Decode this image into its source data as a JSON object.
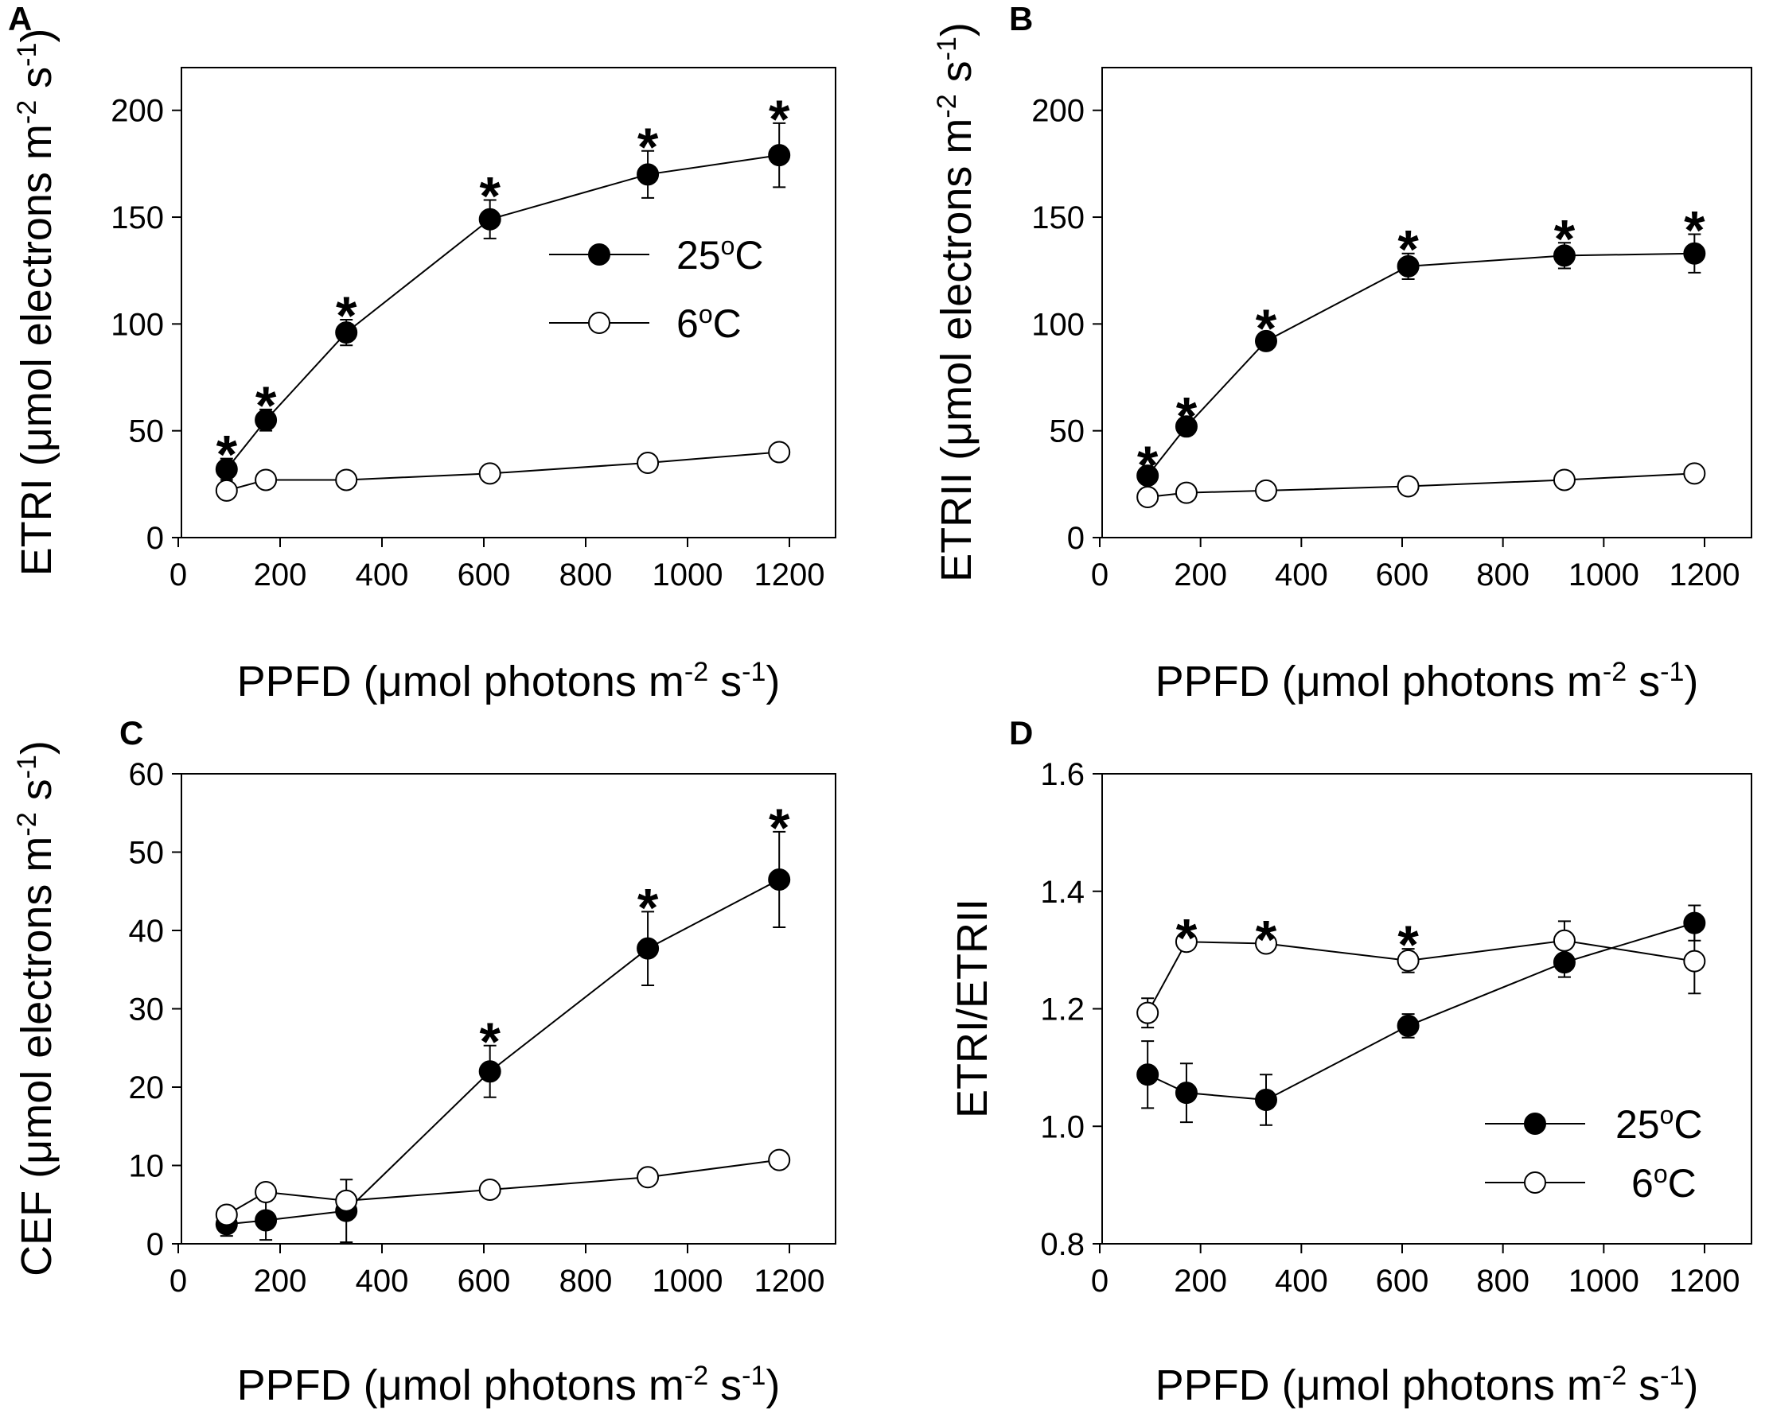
{
  "chart_data": [
    {
      "panel": "A",
      "type": "line",
      "xlabel": "PPFD (μmol photons m",
      "xlabel_sup1": "-2",
      "xlabel_mid": " s",
      "xlabel_sup2": "-1",
      "xlabel_end": ")",
      "ylabel": "ETRI (μmol electrons m",
      "ylabel_sup1": "-2",
      "ylabel_mid": " s",
      "ylabel_sup2": "-1",
      "ylabel_end": ")",
      "xlim": [
        0,
        1300
      ],
      "ylim": [
        0,
        220
      ],
      "xticks": [
        0,
        200,
        400,
        600,
        800,
        1000,
        1200
      ],
      "yticks": [
        0,
        50,
        100,
        150,
        200
      ],
      "x": [
        95,
        172,
        330,
        612,
        922,
        1180
      ],
      "series": [
        {
          "name": "25°C",
          "label_main": "25",
          "label_sup": "o",
          "label_end": "C",
          "fill": "#000000",
          "values": [
            32,
            55,
            96,
            149,
            170,
            179
          ],
          "errors": [
            5,
            5,
            6,
            9,
            11,
            15
          ]
        },
        {
          "name": "6°C",
          "label_main": "6",
          "label_sup": "o",
          "label_end": "C",
          "fill": "#ffffff",
          "values": [
            22,
            27,
            27,
            30,
            35,
            40
          ],
          "errors": [
            0,
            0,
            0,
            0,
            0,
            0
          ]
        }
      ],
      "stars": [
        0,
        1,
        2,
        3,
        4,
        5
      ],
      "star_series": 0,
      "legend": "upper-right",
      "star_text": "*"
    },
    {
      "panel": "B",
      "type": "line",
      "xlabel": "PPFD (μmol photons m",
      "xlabel_sup1": "-2",
      "xlabel_mid": " s",
      "xlabel_sup2": "-1",
      "xlabel_end": ")",
      "ylabel": "ETRII (μmol electrons m",
      "ylabel_sup1": "-2",
      "ylabel_mid": " s",
      "ylabel_sup2": "-1",
      "ylabel_end": ")",
      "xlim": [
        0,
        1300
      ],
      "ylim": [
        0,
        220
      ],
      "xticks": [
        0,
        200,
        400,
        600,
        800,
        1000,
        1200
      ],
      "yticks": [
        0,
        50,
        100,
        150,
        200
      ],
      "x": [
        95,
        172,
        330,
        612,
        922,
        1180
      ],
      "series": [
        {
          "name": "25°C",
          "label_main": "25",
          "label_sup": "o",
          "label_end": "C",
          "fill": "#000000",
          "values": [
            29,
            52,
            92,
            127,
            132,
            133
          ],
          "errors": [
            3,
            3,
            4,
            6,
            6,
            9
          ]
        },
        {
          "name": "6°C",
          "label_main": "6",
          "label_sup": "o",
          "label_end": "C",
          "fill": "#ffffff",
          "values": [
            19,
            21,
            22,
            24,
            27,
            30
          ],
          "errors": [
            0,
            0,
            0,
            0,
            0,
            0
          ]
        }
      ],
      "stars": [
        0,
        1,
        2,
        3,
        4,
        5
      ],
      "star_series": 0,
      "legend": "none",
      "star_text": "*"
    },
    {
      "panel": "C",
      "type": "line",
      "xlabel": "PPFD (μmol photons m",
      "xlabel_sup1": "-2",
      "xlabel_mid": " s",
      "xlabel_sup2": "-1",
      "xlabel_end": ")",
      "ylabel": "CEF (μmol electrons m",
      "ylabel_sup1": "-2",
      "ylabel_mid": " s",
      "ylabel_sup2": "-1",
      "ylabel_end": ")",
      "xlim": [
        0,
        1300
      ],
      "ylim": [
        0,
        60
      ],
      "xticks": [
        0,
        200,
        400,
        600,
        800,
        1000,
        1200
      ],
      "yticks": [
        0,
        10,
        20,
        30,
        40,
        50,
        60
      ],
      "x": [
        95,
        172,
        330,
        612,
        922,
        1180
      ],
      "series": [
        {
          "name": "25°C",
          "label_main": "25",
          "label_sup": "o",
          "label_end": "C",
          "fill": "#000000",
          "values": [
            2.5,
            3,
            4.2,
            22,
            37.7,
            46.5
          ],
          "errors": [
            1.5,
            2.5,
            4,
            3.3,
            4.7,
            6.1
          ]
        },
        {
          "name": "6°C",
          "label_main": "6",
          "label_sup": "o",
          "label_end": "C",
          "fill": "#ffffff",
          "values": [
            3.7,
            6.6,
            5.5,
            6.9,
            8.5,
            10.7
          ],
          "errors": [
            0,
            0,
            0,
            0,
            0,
            0
          ]
        }
      ],
      "stars": [
        3,
        4,
        5
      ],
      "star_series": 0,
      "legend": "none",
      "star_text": "*"
    },
    {
      "panel": "D",
      "type": "line",
      "xlabel": "PPFD (μmol photons m",
      "xlabel_sup1": "-2",
      "xlabel_mid": " s",
      "xlabel_sup2": "-1",
      "xlabel_end": ")",
      "ylabel": "ETRI/ETRII",
      "ylabel_sup1": "",
      "ylabel_mid": "",
      "ylabel_sup2": "",
      "ylabel_end": "",
      "xlim": [
        0,
        1300
      ],
      "ylim": [
        0.8,
        1.6
      ],
      "xticks": [
        0,
        200,
        400,
        600,
        800,
        1000,
        1200
      ],
      "yticks": [
        0.8,
        1.0,
        1.2,
        1.4,
        1.6
      ],
      "ytick_labels": [
        "0.8",
        "1.0",
        "1.2",
        "1.4",
        "1.6"
      ],
      "x": [
        95,
        172,
        330,
        612,
        922,
        1180
      ],
      "series": [
        {
          "name": "25°C",
          "label_main": "25",
          "label_sup": "o",
          "label_end": "C",
          "fill": "#000000",
          "values": [
            1.088,
            1.057,
            1.045,
            1.171,
            1.279,
            1.346
          ],
          "errors": [
            0.057,
            0.05,
            0.043,
            0.02,
            0.025,
            0.03
          ]
        },
        {
          "name": "6°C",
          "label_main": "6",
          "label_sup": "o",
          "label_end": "C",
          "fill": "#ffffff",
          "values": [
            1.193,
            1.314,
            1.311,
            1.282,
            1.316,
            1.281
          ],
          "errors": [
            0.025,
            0,
            0,
            0.02,
            0.033,
            0.055
          ]
        }
      ],
      "stars": [
        1,
        2,
        3
      ],
      "star_series": 1,
      "legend": "lower-right",
      "star_text": "*"
    }
  ]
}
